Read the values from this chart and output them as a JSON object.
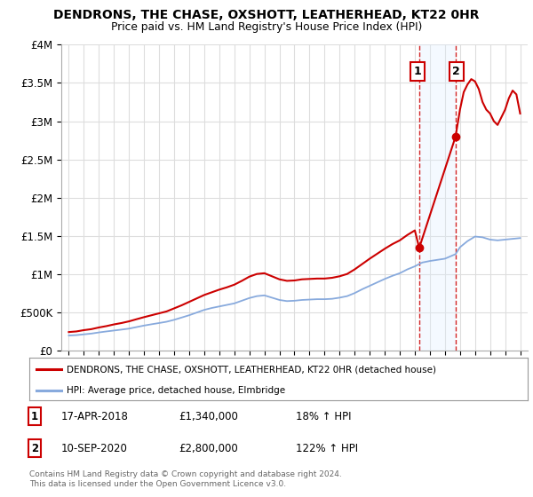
{
  "title": "DENDRONS, THE CHASE, OXSHOTT, LEATHERHEAD, KT22 0HR",
  "subtitle": "Price paid vs. HM Land Registry's House Price Index (HPI)",
  "ylim": [
    0,
    4000000
  ],
  "xlim_start": 1994.5,
  "xlim_end": 2025.5,
  "yticks": [
    0,
    500000,
    1000000,
    1500000,
    2000000,
    2500000,
    3000000,
    3500000,
    4000000
  ],
  "ytick_labels": [
    "£0",
    "£500K",
    "£1M",
    "£1.5M",
    "£2M",
    "£2.5M",
    "£3M",
    "£3.5M",
    "£4M"
  ],
  "xticks": [
    1995,
    1996,
    1997,
    1998,
    1999,
    2000,
    2001,
    2002,
    2003,
    2004,
    2005,
    2006,
    2007,
    2008,
    2009,
    2010,
    2011,
    2012,
    2013,
    2014,
    2015,
    2016,
    2017,
    2018,
    2019,
    2020,
    2021,
    2022,
    2023,
    2024,
    2025
  ],
  "red_line_color": "#cc0000",
  "blue_line_color": "#88aadd",
  "shade_color": "#ddeeff",
  "dashed_line_color": "#cc0000",
  "grid_color": "#dddddd",
  "sale1_x": 2018.29,
  "sale1_y": 1340000,
  "sale2_x": 2020.71,
  "sale2_y": 2800000,
  "legend_label_red": "DENDRONS, THE CHASE, OXSHOTT, LEATHERHEAD, KT22 0HR (detached house)",
  "legend_label_blue": "HPI: Average price, detached house, Elmbridge",
  "annotation1": "1",
  "annotation2": "2",
  "footer1": "Contains HM Land Registry data © Crown copyright and database right 2024.",
  "footer2": "This data is licensed under the Open Government Licence v3.0.",
  "note1_label": "1",
  "note1_date": "17-APR-2018",
  "note1_price": "£1,340,000",
  "note1_hpi": "18% ↑ HPI",
  "note2_label": "2",
  "note2_date": "10-SEP-2020",
  "note2_price": "£2,800,000",
  "note2_hpi": "122% ↑ HPI",
  "background_color": "#ffffff",
  "years_hpi": [
    1995,
    1995.5,
    1996,
    1996.5,
    1997,
    1997.5,
    1998,
    1998.5,
    1999,
    1999.5,
    2000,
    2000.5,
    2001,
    2001.5,
    2002,
    2002.5,
    2003,
    2003.5,
    2004,
    2004.5,
    2005,
    2005.5,
    2006,
    2006.5,
    2007,
    2007.5,
    2008,
    2008.5,
    2009,
    2009.5,
    2010,
    2010.5,
    2011,
    2011.5,
    2012,
    2012.5,
    2013,
    2013.5,
    2014,
    2014.5,
    2015,
    2015.5,
    2016,
    2016.5,
    2017,
    2017.5,
    2018,
    2018.29,
    2018.5,
    2019,
    2019.5,
    2020,
    2020.71,
    2021,
    2021.5,
    2022,
    2022.5,
    2023,
    2023.5,
    2024,
    2024.5,
    2025
  ],
  "hpi_values": [
    195000,
    200000,
    210000,
    220000,
    235000,
    248000,
    260000,
    272000,
    285000,
    305000,
    325000,
    342000,
    358000,
    375000,
    400000,
    430000,
    460000,
    495000,
    530000,
    555000,
    575000,
    595000,
    615000,
    650000,
    685000,
    710000,
    720000,
    690000,
    660000,
    645000,
    650000,
    660000,
    665000,
    670000,
    670000,
    675000,
    690000,
    710000,
    750000,
    800000,
    845000,
    890000,
    935000,
    975000,
    1010000,
    1060000,
    1100000,
    1130000,
    1150000,
    1170000,
    1185000,
    1200000,
    1260000,
    1350000,
    1430000,
    1490000,
    1480000,
    1450000,
    1440000,
    1450000,
    1460000,
    1470000
  ],
  "red_years_pre": [
    1995,
    1995.5,
    1996,
    1996.5,
    1997,
    1997.5,
    1998,
    1998.5,
    1999,
    1999.5,
    2000,
    2000.5,
    2001,
    2001.5,
    2002,
    2002.5,
    2003,
    2003.5,
    2004,
    2004.5,
    2005,
    2005.5,
    2006,
    2006.5,
    2007,
    2007.5,
    2008,
    2008.5,
    2009,
    2009.5,
    2010,
    2010.5,
    2011,
    2011.5,
    2012,
    2012.5,
    2013,
    2013.5,
    2014,
    2014.5,
    2015,
    2015.5,
    2016,
    2016.5,
    2017,
    2017.5,
    2018,
    2018.29
  ],
  "red_values_pre": [
    240000,
    248000,
    265000,
    278000,
    300000,
    318000,
    340000,
    358000,
    380000,
    408000,
    435000,
    460000,
    485000,
    510000,
    550000,
    590000,
    635000,
    680000,
    725000,
    760000,
    795000,
    825000,
    860000,
    910000,
    965000,
    1000000,
    1010000,
    970000,
    930000,
    910000,
    915000,
    930000,
    935000,
    940000,
    940000,
    950000,
    970000,
    1000000,
    1060000,
    1130000,
    1200000,
    1265000,
    1330000,
    1390000,
    1440000,
    1510000,
    1570000,
    1340000
  ],
  "red_years_post": [
    2020.71,
    2021,
    2021.25,
    2021.5,
    2021.75,
    2022,
    2022.25,
    2022.5,
    2022.75,
    2023,
    2023.25,
    2023.5,
    2023.75,
    2024,
    2024.25,
    2024.5,
    2024.75,
    2025
  ],
  "red_values_post": [
    2800000,
    3150000,
    3380000,
    3480000,
    3550000,
    3520000,
    3420000,
    3250000,
    3150000,
    3100000,
    3000000,
    2950000,
    3050000,
    3150000,
    3300000,
    3400000,
    3350000,
    3100000
  ]
}
